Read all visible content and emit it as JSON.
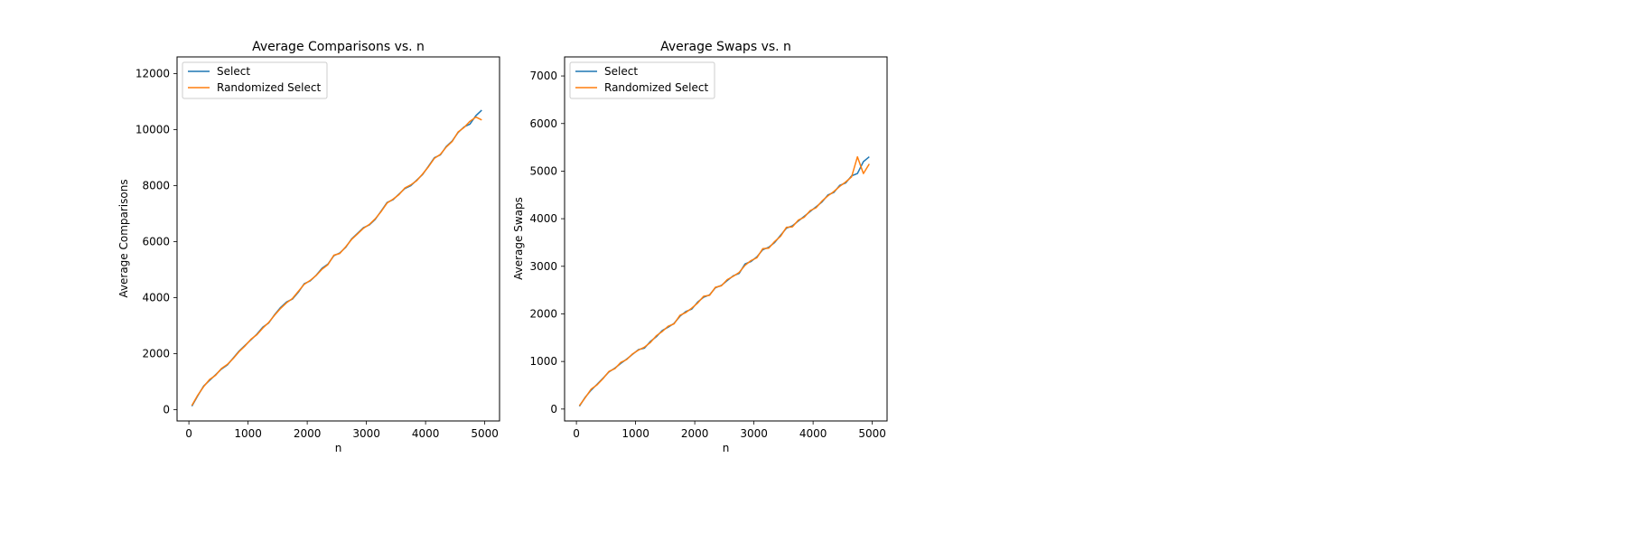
{
  "chart_data": [
    {
      "type": "line",
      "title": "Average Comparisons vs. n",
      "xlabel": "n",
      "ylabel": "Average Comparisons",
      "xlim": [
        -200,
        5250
      ],
      "ylim": [
        -400,
        12600
      ],
      "xticks": [
        0,
        1000,
        2000,
        3000,
        4000,
        5000
      ],
      "xtick_labels": [
        "0",
        "1000",
        "2000",
        "3000",
        "4000",
        "5000"
      ],
      "yticks": [
        0,
        2000,
        4000,
        6000,
        8000,
        10000,
        12000
      ],
      "ytick_labels": [
        "0",
        "2000",
        "4000",
        "6000",
        "8000",
        "10000",
        "12000"
      ],
      "grid": false,
      "legend_position": "upper-left",
      "series": [
        {
          "name": "Select",
          "color": "#1f77b4",
          "x": [
            50,
            150,
            250,
            350,
            450,
            550,
            650,
            750,
            850,
            950,
            1050,
            1150,
            1250,
            1350,
            1450,
            1550,
            1650,
            1750,
            1850,
            1950,
            2050,
            2150,
            2250,
            2350,
            2450,
            2550,
            2650,
            2750,
            2850,
            2950,
            3050,
            3150,
            3250,
            3350,
            3450,
            3550,
            3650,
            3750,
            3850,
            3950,
            4050,
            4150,
            4250,
            4350,
            4450,
            4550,
            4650,
            4750,
            4850,
            4950
          ],
          "y": [
            130,
            500,
            850,
            1050,
            1250,
            1450,
            1600,
            1850,
            2100,
            2300,
            2500,
            2700,
            2950,
            3100,
            3400,
            3650,
            3850,
            3950,
            4200,
            4500,
            4600,
            4800,
            5050,
            5200,
            5500,
            5600,
            5800,
            6100,
            6300,
            6500,
            6600,
            6800,
            7100,
            7400,
            7500,
            7700,
            7900,
            8000,
            8200,
            8400,
            8700,
            9000,
            9100,
            9400,
            9600,
            9900,
            10100,
            10200,
            10500,
            10700
          ]
        },
        {
          "name": "Randomized Select",
          "color": "#ff7f0e",
          "x": [
            50,
            150,
            250,
            350,
            450,
            550,
            650,
            750,
            850,
            950,
            1050,
            1150,
            1250,
            1350,
            1450,
            1550,
            1650,
            1750,
            1850,
            1950,
            2050,
            2150,
            2250,
            2350,
            2450,
            2550,
            2650,
            2750,
            2850,
            2950,
            3050,
            3150,
            3250,
            3350,
            3450,
            3550,
            3650,
            3750,
            3850,
            3950,
            4050,
            4150,
            4250,
            4350,
            4450,
            4550,
            4650,
            4750,
            4850,
            4950
          ],
          "y": [
            150,
            520,
            830,
            1080,
            1230,
            1470,
            1620,
            1830,
            2080,
            2280,
            2520,
            2680,
            2920,
            3120,
            3380,
            3620,
            3820,
            3970,
            4230,
            4480,
            4620,
            4790,
            5020,
            5180,
            5520,
            5580,
            5820,
            6080,
            6280,
            6480,
            6620,
            6820,
            7080,
            7380,
            7520,
            7680,
            7920,
            8030,
            8180,
            8420,
            8680,
            8980,
            9120,
            9380,
            9580,
            9920,
            10080,
            10300,
            10450,
            10350
          ]
        }
      ]
    },
    {
      "type": "line",
      "title": "Average Swaps vs. n",
      "xlabel": "n",
      "ylabel": "Average Swaps",
      "xlim": [
        -200,
        5250
      ],
      "ylim": [
        -250,
        7400
      ],
      "xticks": [
        0,
        1000,
        2000,
        3000,
        4000,
        5000
      ],
      "xtick_labels": [
        "0",
        "1000",
        "2000",
        "3000",
        "4000",
        "5000"
      ],
      "yticks": [
        0,
        1000,
        2000,
        3000,
        4000,
        5000,
        6000,
        7000
      ],
      "ytick_labels": [
        "0",
        "1000",
        "2000",
        "3000",
        "4000",
        "5000",
        "6000",
        "7000"
      ],
      "grid": false,
      "legend_position": "upper-left",
      "series": [
        {
          "name": "Select",
          "color": "#1f77b4",
          "x": [
            50,
            150,
            250,
            350,
            450,
            550,
            650,
            750,
            850,
            950,
            1050,
            1150,
            1250,
            1350,
            1450,
            1550,
            1650,
            1750,
            1850,
            1950,
            2050,
            2150,
            2250,
            2350,
            2450,
            2550,
            2650,
            2750,
            2850,
            2950,
            3050,
            3150,
            3250,
            3350,
            3450,
            3550,
            3650,
            3750,
            3850,
            3950,
            4050,
            4150,
            4250,
            4350,
            4450,
            4550,
            4650,
            4750,
            4850,
            4950
          ],
          "y": [
            60,
            250,
            400,
            520,
            650,
            780,
            860,
            960,
            1050,
            1150,
            1250,
            1280,
            1420,
            1520,
            1650,
            1720,
            1800,
            1950,
            2050,
            2100,
            2250,
            2350,
            2400,
            2550,
            2600,
            2700,
            2800,
            2850,
            3050,
            3100,
            3200,
            3350,
            3400,
            3500,
            3650,
            3800,
            3850,
            3950,
            4050,
            4150,
            4250,
            4350,
            4500,
            4550,
            4700,
            4750,
            4900,
            4950,
            5200,
            5300
          ]
        },
        {
          "name": "Randomized Select",
          "color": "#ff7f0e",
          "x": [
            50,
            150,
            250,
            350,
            450,
            550,
            650,
            750,
            850,
            950,
            1050,
            1150,
            1250,
            1350,
            1450,
            1550,
            1650,
            1750,
            1850,
            1950,
            2050,
            2150,
            2250,
            2350,
            2450,
            2550,
            2650,
            2750,
            2850,
            2950,
            3050,
            3150,
            3250,
            3350,
            3450,
            3550,
            3650,
            3750,
            3850,
            3950,
            4050,
            4150,
            4250,
            4350,
            4450,
            4550,
            4650,
            4750,
            4850,
            4950
          ],
          "y": [
            70,
            240,
            420,
            510,
            640,
            790,
            850,
            980,
            1040,
            1160,
            1240,
            1300,
            1400,
            1540,
            1630,
            1740,
            1790,
            1970,
            2030,
            2120,
            2230,
            2370,
            2390,
            2560,
            2590,
            2720,
            2790,
            2870,
            3020,
            3120,
            3180,
            3370,
            3380,
            3520,
            3630,
            3820,
            3830,
            3970,
            4030,
            4170,
            4230,
            4370,
            4480,
            4570,
            4680,
            4770,
            4880,
            5300,
            4950,
            5150
          ]
        }
      ]
    }
  ]
}
